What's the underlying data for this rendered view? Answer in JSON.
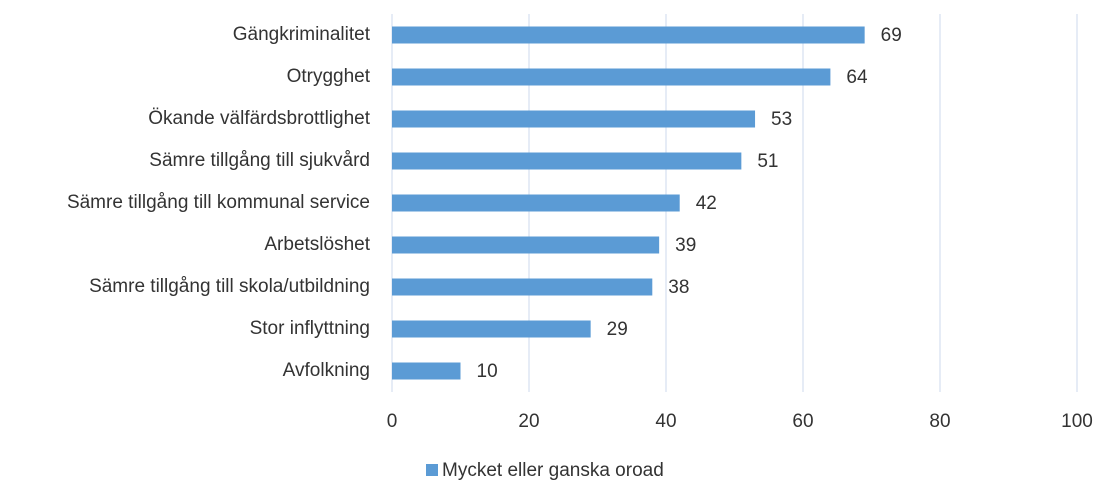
{
  "chart_data": {
    "type": "bar",
    "horizontal": true,
    "categories": [
      "Gängkriminalitet",
      "Otrygghet",
      "Ökande välfärdsbrottlighet",
      "Sämre tillgång till sjukvård",
      "Sämre tillgång till kommunal service",
      "Arbetslöshet",
      "Sämre tillgång till skola/utbildning",
      "Stor inflyttning",
      "Avfolkning"
    ],
    "series": [
      {
        "name": "Mycket eller ganska oroad",
        "color": "#5b9bd5",
        "values": [
          69,
          64,
          53,
          51,
          42,
          39,
          38,
          29,
          10
        ]
      }
    ],
    "xlim": [
      0,
      100
    ],
    "xticks": [
      0,
      20,
      40,
      60,
      80,
      100
    ],
    "grid": true,
    "legend": "bottom"
  }
}
